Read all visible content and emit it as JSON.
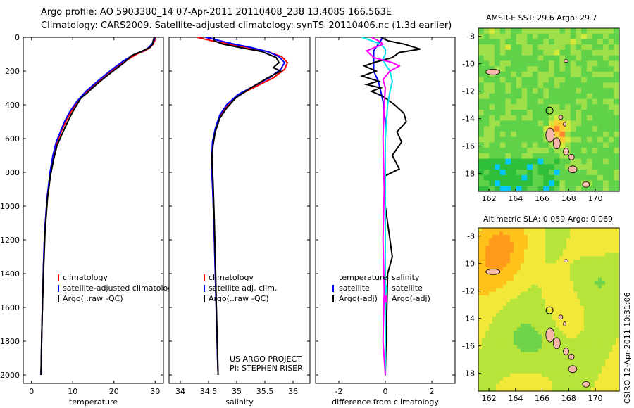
{
  "title_line1": "Argo profile: AO 5903380_14 07-Apr-2011 20110408_238 13.408S 166.563E",
  "title_line2": "Climatology: CARS2009. Satellite-adjusted climatology: synTS_20110406.nc (1.3d earlier)",
  "side_stamp": "CSIRO 12-Apr-2011 10:31:06",
  "colors": {
    "climatology": "#ff0000",
    "satellite": "#0000ff",
    "argo": "#000000",
    "satellite_sal": "#00e5ee",
    "argo_sal": "#ff00ff"
  },
  "chart_data": [
    {
      "type": "line",
      "id": "temperature",
      "xlabel": "temperature",
      "ylabel": "",
      "xlim": [
        -2,
        32
      ],
      "ylim": [
        2050,
        0
      ],
      "xticks": [
        0,
        10,
        20,
        30
      ],
      "yticks": [
        0,
        200,
        400,
        600,
        800,
        1000,
        1200,
        1400,
        1600,
        1800,
        2000
      ],
      "legend": [
        "climatology",
        "satellite-adjusted climatology",
        "Argo(..raw -QC)"
      ],
      "series": [
        {
          "name": "climatology",
          "x": [
            30.0,
            29.9,
            29.5,
            28.8,
            27.5,
            25.5,
            22.8,
            19.5,
            16.5,
            13.5,
            11.3,
            9.6,
            8.3,
            7.2,
            6.2,
            5.3,
            4.6,
            3.8,
            3.2,
            2.9,
            2.7,
            2.5,
            2.35,
            2.3
          ],
          "y": [
            0,
            20,
            40,
            60,
            80,
            100,
            140,
            200,
            260,
            320,
            380,
            440,
            500,
            560,
            620,
            700,
            800,
            950,
            1150,
            1350,
            1550,
            1750,
            1950,
            2000
          ]
        },
        {
          "name": "satellite-adjusted climatology",
          "x": [
            29.9,
            29.7,
            29.2,
            28.4,
            27.2,
            25.0,
            22.3,
            19.0,
            16.0,
            13.2,
            11.0,
            9.3,
            8.0,
            7.0,
            6.0,
            5.2,
            4.5,
            3.8,
            3.2,
            2.9,
            2.7,
            2.5,
            2.35,
            2.3
          ],
          "y": [
            0,
            20,
            40,
            60,
            80,
            100,
            140,
            200,
            260,
            320,
            380,
            440,
            500,
            560,
            620,
            700,
            800,
            950,
            1150,
            1350,
            1550,
            1750,
            1950,
            2000
          ]
        },
        {
          "name": "Argo(..raw -QC)",
          "x": [
            29.8,
            29.5,
            29.4,
            28.7,
            27.0,
            24.2,
            22.5,
            19.8,
            17.2,
            14.8,
            13.5,
            12.0,
            10.5,
            9.6,
            8.4,
            7.3,
            6.2,
            5.4,
            4.6,
            3.9,
            3.3,
            2.9,
            2.6,
            2.4,
            2.3
          ],
          "y": [
            0,
            20,
            40,
            60,
            80,
            110,
            150,
            200,
            250,
            300,
            330,
            360,
            420,
            460,
            520,
            580,
            640,
            720,
            820,
            950,
            1150,
            1400,
            1650,
            1850,
            2000
          ]
        }
      ]
    },
    {
      "type": "line",
      "id": "salinity",
      "xlabel": "salinity",
      "ylabel": "",
      "xlim": [
        33.8,
        36.3
      ],
      "ylim": [
        2050,
        0
      ],
      "xticks": [
        34,
        34.5,
        35,
        35.5,
        36
      ],
      "yticks": [],
      "legend": [
        "climatology",
        "satellite adj. clim.",
        "Argo(..raw -QC)"
      ],
      "annotation": [
        "US ARGO PROJECT",
        "PI: STEPHEN RISER"
      ],
      "series": [
        {
          "name": "climatology",
          "x": [
            34.3,
            34.55,
            34.85,
            35.2,
            35.55,
            35.8,
            35.9,
            35.85,
            35.65,
            35.35,
            35.05,
            34.85,
            34.72,
            34.63,
            34.58,
            34.56,
            34.56,
            34.58,
            34.6,
            34.62,
            34.64,
            34.66,
            34.67
          ],
          "y": [
            0,
            20,
            40,
            60,
            85,
            115,
            150,
            190,
            240,
            290,
            340,
            400,
            460,
            540,
            620,
            700,
            800,
            950,
            1150,
            1400,
            1650,
            1900,
            2000
          ]
        },
        {
          "name": "satellite adj. clim.",
          "x": [
            34.45,
            34.7,
            34.95,
            35.25,
            35.55,
            35.75,
            35.85,
            35.78,
            35.58,
            35.3,
            35.02,
            34.82,
            34.7,
            34.62,
            34.57,
            34.56,
            34.56,
            34.58,
            34.6,
            34.62,
            34.64,
            34.66,
            34.67
          ],
          "y": [
            0,
            20,
            40,
            60,
            85,
            115,
            150,
            190,
            240,
            290,
            340,
            400,
            460,
            540,
            620,
            700,
            800,
            950,
            1150,
            1400,
            1650,
            1900,
            2000
          ]
        },
        {
          "name": "Argo(..raw -QC)",
          "x": [
            34.6,
            34.6,
            34.75,
            35.05,
            35.45,
            35.7,
            35.75,
            35.65,
            35.78,
            35.55,
            35.25,
            34.98,
            34.82,
            34.7,
            34.62,
            34.58,
            34.56,
            34.58,
            34.6,
            34.62,
            34.64,
            34.66,
            34.67
          ],
          "y": [
            0,
            20,
            40,
            60,
            85,
            120,
            150,
            180,
            200,
            240,
            300,
            360,
            420,
            480,
            560,
            640,
            720,
            850,
            1050,
            1300,
            1600,
            1850,
            2000
          ]
        }
      ]
    },
    {
      "type": "line",
      "id": "difference",
      "xlabel": "difference from climatology",
      "ylabel": "",
      "xlim": [
        -3,
        3
      ],
      "ylim": [
        2050,
        0
      ],
      "xticks": [
        -2,
        0,
        2
      ],
      "yticks": [],
      "legend_temperature": [
        "temperature",
        "satellite",
        "Argo(-adj)"
      ],
      "legend_salinity": [
        "salinity",
        "satellite",
        "Argo(-adj)"
      ],
      "series": [
        {
          "name": "temperature satellite",
          "x": [
            -0.1,
            -0.2,
            -0.3,
            -0.4,
            -0.5,
            -0.5,
            -0.5,
            -0.5,
            -0.3,
            -0.2,
            -0.1,
            -0.05,
            0,
            0,
            0
          ],
          "y": [
            0,
            20,
            40,
            60,
            80,
            100,
            140,
            200,
            260,
            320,
            380,
            440,
            500,
            800,
            2000
          ]
        },
        {
          "name": "temperature Argo(-adj)",
          "x": [
            -0.2,
            0.1,
            0.8,
            1.5,
            0.6,
            0.3,
            -0.5,
            -0.9,
            -0.4,
            -1.0,
            -0.3,
            -0.8,
            -0.2,
            -0.6,
            -0.1,
            0.4,
            0.8,
            0.9,
            0.5,
            0.7,
            0.3,
            0.6,
            0.0,
            0.0,
            0.2,
            0.3,
            0.1,
            0.0
          ],
          "y": [
            0,
            20,
            40,
            70,
            90,
            120,
            150,
            170,
            200,
            230,
            260,
            280,
            300,
            320,
            350,
            400,
            450,
            500,
            560,
            620,
            700,
            780,
            820,
            1000,
            1200,
            1300,
            1400,
            2000
          ]
        },
        {
          "name": "salinity satellite",
          "x": [
            -1.0,
            -0.6,
            -0.2,
            0.0,
            0.0,
            -0.1,
            0.0,
            0.2,
            0.3,
            0.2,
            0.1,
            0.05,
            0.0,
            0.0,
            0.0
          ],
          "y": [
            0,
            20,
            40,
            70,
            100,
            130,
            160,
            200,
            260,
            320,
            400,
            500,
            600,
            800,
            2000
          ]
        },
        {
          "name": "salinity Argo(-adj)",
          "x": [
            -0.6,
            -0.3,
            -0.1,
            -0.8,
            -0.5,
            0.3,
            0.6,
            0.2,
            -0.1,
            0.0,
            -0.05,
            -0.1,
            -0.05,
            -0.1,
            -0.05,
            -0.1,
            0.0
          ],
          "y": [
            0,
            20,
            40,
            80,
            120,
            150,
            170,
            200,
            250,
            300,
            400,
            600,
            900,
            1200,
            1500,
            1800,
            2000
          ]
        }
      ]
    },
    {
      "type": "heatmap",
      "id": "amsr_sst",
      "title": "AMSR-E SST: 29.6 Argo: 29.7",
      "xlim": [
        161.2,
        171.8
      ],
      "ylim": [
        -19.3,
        -7.4
      ],
      "xticks": [
        162,
        164,
        166,
        168,
        170
      ],
      "yticks": [
        -8,
        -10,
        -12,
        -14,
        -16,
        -18
      ],
      "colorscale": [
        "#00c8ff",
        "#2fbf3a",
        "#5fd24a",
        "#9fe04a",
        "#d6e83a",
        "#ffcc33",
        "#ff8833"
      ]
    },
    {
      "type": "heatmap",
      "id": "altimetric_sla",
      "title": "Altimetric SLA: 0.059 Argo: 0.069",
      "xlim": [
        161.2,
        171.8
      ],
      "ylim": [
        -19.3,
        -7.4
      ],
      "xticks": [
        162,
        164,
        166,
        168,
        170
      ],
      "yticks": [
        -8,
        -10,
        -12,
        -14,
        -16,
        -18
      ],
      "colorscale": [
        "#2fbf3a",
        "#6fd44a",
        "#b6e43a",
        "#f2e83a",
        "#ffc21a",
        "#ff9a1a"
      ]
    }
  ]
}
